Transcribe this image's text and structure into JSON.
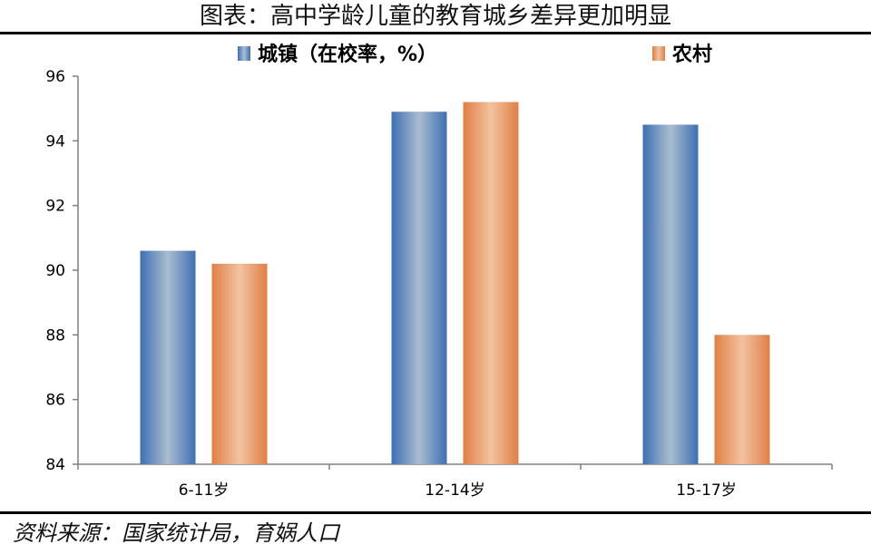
{
  "page": {
    "title": "图表：高中学龄儿童的教育城乡差异更加明显",
    "source": "资料来源：国家统计局，育娲人口"
  },
  "colors": {
    "urban_dark": "#4a76b5",
    "urban_light": "#a9bdd0",
    "rural_dark": "#e07f45",
    "rural_light": "#f2c3a0",
    "axis": "#808080"
  },
  "chart_data": {
    "type": "bar",
    "categories": [
      "6-11岁",
      "12-14岁",
      "15-17岁"
    ],
    "series": [
      {
        "name": "城镇（在校率，%）",
        "values": [
          90.6,
          94.9,
          94.5
        ]
      },
      {
        "name": "农村",
        "values": [
          90.2,
          95.2,
          88.0
        ]
      }
    ],
    "ylim": [
      84,
      96
    ],
    "yticks": [
      84,
      86,
      88,
      90,
      92,
      94,
      96
    ],
    "grid": false,
    "legend_position": "top"
  }
}
